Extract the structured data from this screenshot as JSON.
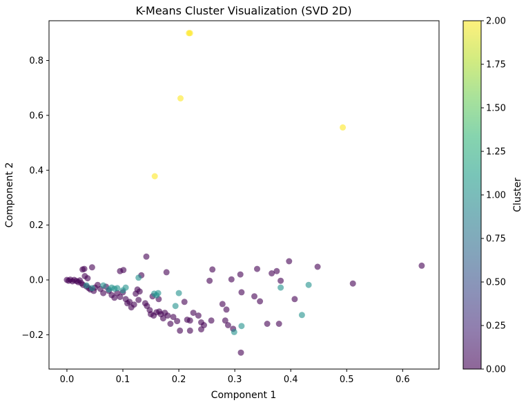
{
  "chart_data": {
    "type": "scatter",
    "title": "K-Means Cluster Visualization (SVD 2D)",
    "xlabel": "Component 1",
    "ylabel": "Component 2",
    "xlim": [
      -0.032,
      0.665
    ],
    "ylim": [
      -0.325,
      0.945
    ],
    "xticks": [
      0.0,
      0.1,
      0.2,
      0.3,
      0.4,
      0.5,
      0.6
    ],
    "xtick_labels": [
      "0.0",
      "0.1",
      "0.2",
      "0.3",
      "0.4",
      "0.5",
      "0.6"
    ],
    "yticks": [
      -0.2,
      0.0,
      0.2,
      0.4,
      0.6,
      0.8
    ],
    "ytick_labels": [
      "−0.2",
      "0.0",
      "0.2",
      "0.4",
      "0.6",
      "0.8"
    ],
    "grid": false,
    "colorbar": {
      "label": "Cluster",
      "colormap": "viridis",
      "range": [
        0.0,
        2.0
      ],
      "ticks": [
        0.0,
        0.25,
        0.5,
        0.75,
        1.0,
        1.25,
        1.5,
        1.75,
        2.0
      ],
      "tick_labels": [
        "0.00",
        "0.25",
        "0.50",
        "0.75",
        "1.00",
        "1.25",
        "1.50",
        "1.75",
        "2.00"
      ]
    },
    "cluster_colors": [
      "#440154",
      "#21918c",
      "#fde725"
    ],
    "point_alpha": 0.6,
    "series": [
      {
        "cluster": 0,
        "points": [
          [
            0.0,
            0.0
          ],
          [
            0.003,
            -0.003
          ],
          [
            0.006,
            0.001
          ],
          [
            0.01,
            -0.005
          ],
          [
            0.013,
            0.0
          ],
          [
            0.017,
            -0.004
          ],
          [
            0.02,
            -0.008
          ],
          [
            0.023,
            -0.002
          ],
          [
            0.026,
            -0.012
          ],
          [
            0.029,
            -0.018
          ],
          [
            0.032,
            0.014
          ],
          [
            0.035,
            -0.024
          ],
          [
            0.028,
            0.038
          ],
          [
            0.031,
            0.04
          ],
          [
            0.037,
            0.006
          ],
          [
            0.039,
            -0.03
          ],
          [
            0.042,
            -0.035
          ],
          [
            0.045,
            0.046
          ],
          [
            0.048,
            -0.04
          ],
          [
            0.05,
            -0.028
          ],
          [
            0.055,
            -0.018
          ],
          [
            0.06,
            -0.033
          ],
          [
            0.065,
            -0.048
          ],
          [
            0.07,
            -0.025
          ],
          [
            0.075,
            -0.04
          ],
          [
            0.08,
            -0.055
          ],
          [
            0.085,
            -0.065
          ],
          [
            0.09,
            -0.048
          ],
          [
            0.095,
            -0.062
          ],
          [
            0.1,
            -0.045
          ],
          [
            0.095,
            0.032
          ],
          [
            0.101,
            0.036
          ],
          [
            0.105,
            -0.07
          ],
          [
            0.108,
            -0.085
          ],
          [
            0.112,
            -0.08
          ],
          [
            0.115,
            -0.1
          ],
          [
            0.12,
            -0.09
          ],
          [
            0.123,
            -0.05
          ],
          [
            0.126,
            -0.035
          ],
          [
            0.13,
            -0.042
          ],
          [
            0.128,
            -0.073
          ],
          [
            0.133,
            0.017
          ],
          [
            0.14,
            -0.085
          ],
          [
            0.143,
            -0.095
          ],
          [
            0.142,
            0.085
          ],
          [
            0.148,
            -0.11
          ],
          [
            0.15,
            -0.125
          ],
          [
            0.153,
            -0.06
          ],
          [
            0.155,
            -0.13
          ],
          [
            0.16,
            -0.118
          ],
          [
            0.164,
            -0.07
          ],
          [
            0.165,
            -0.115
          ],
          [
            0.168,
            -0.125
          ],
          [
            0.172,
            -0.14
          ],
          [
            0.175,
            -0.12
          ],
          [
            0.178,
            0.028
          ],
          [
            0.18,
            -0.13
          ],
          [
            0.185,
            -0.16
          ],
          [
            0.19,
            -0.135
          ],
          [
            0.197,
            -0.15
          ],
          [
            0.202,
            -0.185
          ],
          [
            0.21,
            -0.08
          ],
          [
            0.215,
            -0.145
          ],
          [
            0.22,
            -0.148
          ],
          [
            0.22,
            -0.185
          ],
          [
            0.226,
            -0.12
          ],
          [
            0.235,
            -0.13
          ],
          [
            0.24,
            -0.155
          ],
          [
            0.24,
            -0.18
          ],
          [
            0.245,
            -0.165
          ],
          [
            0.255,
            -0.003
          ],
          [
            0.258,
            -0.148
          ],
          [
            0.26,
            0.038
          ],
          [
            0.278,
            -0.088
          ],
          [
            0.283,
            -0.148
          ],
          [
            0.285,
            -0.108
          ],
          [
            0.288,
            -0.165
          ],
          [
            0.294,
            0.002
          ],
          [
            0.297,
            -0.178
          ],
          [
            0.31,
            0.02
          ],
          [
            0.312,
            -0.045
          ],
          [
            0.311,
            -0.265
          ],
          [
            0.335,
            -0.06
          ],
          [
            0.34,
            0.04
          ],
          [
            0.345,
            -0.078
          ],
          [
            0.358,
            -0.16
          ],
          [
            0.366,
            0.024
          ],
          [
            0.375,
            0.032
          ],
          [
            0.379,
            -0.16
          ],
          [
            0.382,
            -0.003
          ],
          [
            0.397,
            0.068
          ],
          [
            0.407,
            -0.07
          ],
          [
            0.448,
            0.048
          ],
          [
            0.511,
            -0.013
          ],
          [
            0.634,
            0.052
          ]
        ]
      },
      {
        "cluster": 1,
        "points": [
          [
            0.035,
            -0.02
          ],
          [
            0.045,
            -0.03
          ],
          [
            0.065,
            -0.02
          ],
          [
            0.075,
            -0.035
          ],
          [
            0.08,
            -0.028
          ],
          [
            0.085,
            -0.032
          ],
          [
            0.09,
            -0.03
          ],
          [
            0.1,
            -0.038
          ],
          [
            0.105,
            -0.028
          ],
          [
            0.128,
            0.008
          ],
          [
            0.156,
            -0.05
          ],
          [
            0.16,
            -0.056
          ],
          [
            0.163,
            -0.048
          ],
          [
            0.194,
            -0.095
          ],
          [
            0.2,
            -0.048
          ],
          [
            0.299,
            -0.19
          ],
          [
            0.312,
            -0.168
          ],
          [
            0.382,
            -0.028
          ],
          [
            0.42,
            -0.128
          ],
          [
            0.432,
            -0.018
          ]
        ]
      },
      {
        "cluster": 2,
        "points": [
          [
            0.218,
            0.9
          ],
          [
            0.22,
            0.9
          ],
          [
            0.203,
            0.662
          ],
          [
            0.157,
            0.378
          ],
          [
            0.493,
            0.556
          ]
        ]
      }
    ]
  }
}
